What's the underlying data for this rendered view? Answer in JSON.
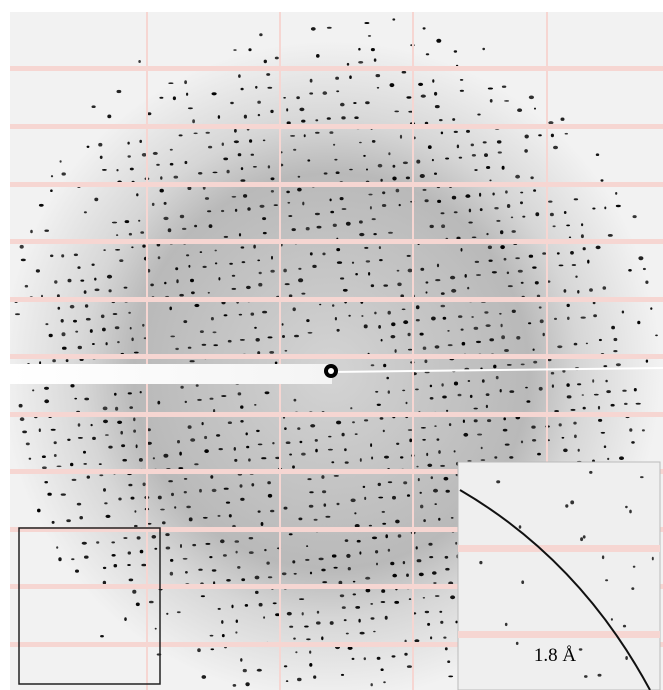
{
  "inset": {
    "label": "1.8 Å"
  }
}
